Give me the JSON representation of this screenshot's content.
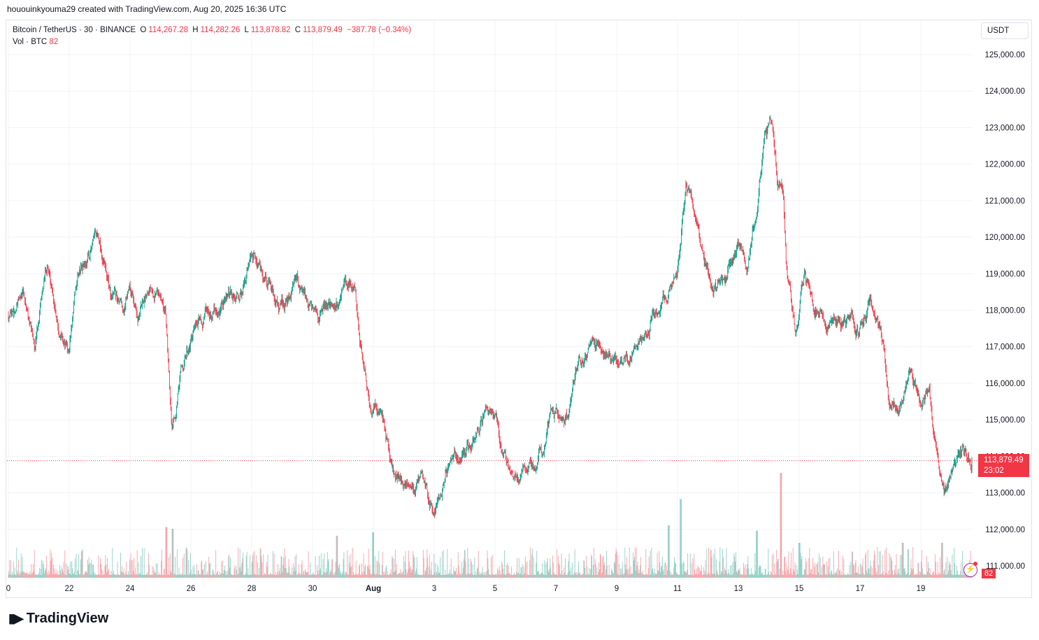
{
  "header": {
    "text": "hououinkyouma29 created with TradingView.com, Aug 20, 2025 16:36 UTC"
  },
  "legend": {
    "symbol": "Bitcoin / TetherUS · 30 · BINANCE",
    "open_label": "O",
    "open": "114,267.28",
    "high_label": "H",
    "high": "114,282.26",
    "low_label": "L",
    "low": "113,878.82",
    "close_label": "C",
    "close": "113,879.49",
    "change": "−387.78 (−0.34%)",
    "vol_label": "Vol · BTC",
    "vol_value": "82"
  },
  "currency_button": "USDT",
  "price_tag": {
    "price": "113,879.49",
    "countdown": "23:02"
  },
  "volume_tag": "82",
  "logo_text": "TradingView",
  "colors": {
    "up": "#089981",
    "down": "#f23645",
    "grid": "#f0f3fa",
    "text": "#131722"
  },
  "chart_data": {
    "type": "candlestick",
    "y_ticks": [
      "125,000.00",
      "124,000.00",
      "123,000.00",
      "122,000.00",
      "121,000.00",
      "120,000.00",
      "119,000.00",
      "118,000.00",
      "117,000.00",
      "116,000.00",
      "115,000.00",
      "114,000.00",
      "113,000.00",
      "112,000.00",
      "111,000.00"
    ],
    "ylim": [
      110600,
      125500
    ],
    "x_ticks": [
      {
        "label": "0",
        "day": 0
      },
      {
        "label": "22",
        "day": 2
      },
      {
        "label": "24",
        "day": 4
      },
      {
        "label": "26",
        "day": 6
      },
      {
        "label": "28",
        "day": 8
      },
      {
        "label": "30",
        "day": 10
      },
      {
        "label": "Aug",
        "day": 12,
        "bold": true
      },
      {
        "label": "3",
        "day": 14
      },
      {
        "label": "5",
        "day": 16
      },
      {
        "label": "7",
        "day": 18
      },
      {
        "label": "9",
        "day": 20
      },
      {
        "label": "11",
        "day": 22
      },
      {
        "label": "13",
        "day": 24
      },
      {
        "label": "15",
        "day": 26
      },
      {
        "label": "17",
        "day": 28
      },
      {
        "label": "19",
        "day": 30
      }
    ],
    "days_span": 31.7,
    "close_path": [
      [
        0.0,
        117900
      ],
      [
        0.5,
        118300
      ],
      [
        0.9,
        117000
      ],
      [
        1.3,
        119300
      ],
      [
        1.7,
        117600
      ],
      [
        2.0,
        116800
      ],
      [
        2.3,
        118900
      ],
      [
        2.8,
        119800
      ],
      [
        3.0,
        120000
      ],
      [
        3.4,
        118300
      ],
      [
        3.8,
        118000
      ],
      [
        4.0,
        118800
      ],
      [
        4.3,
        117800
      ],
      [
        4.7,
        118900
      ],
      [
        5.0,
        118600
      ],
      [
        5.2,
        117800
      ],
      [
        5.4,
        114900
      ],
      [
        5.7,
        116300
      ],
      [
        6.0,
        117200
      ],
      [
        6.4,
        117600
      ],
      [
        6.8,
        118100
      ],
      [
        7.3,
        118200
      ],
      [
        7.7,
        118400
      ],
      [
        8.0,
        119300
      ],
      [
        8.3,
        119200
      ],
      [
        8.8,
        118300
      ],
      [
        9.2,
        118100
      ],
      [
        9.5,
        118900
      ],
      [
        9.9,
        118000
      ],
      [
        10.2,
        117600
      ],
      [
        10.6,
        118000
      ],
      [
        11.0,
        118400
      ],
      [
        11.4,
        118700
      ],
      [
        11.6,
        117200
      ],
      [
        11.9,
        115400
      ],
      [
        12.3,
        115200
      ],
      [
        12.7,
        113500
      ],
      [
        13.1,
        113300
      ],
      [
        13.6,
        113200
      ],
      [
        14.0,
        112400
      ],
      [
        14.4,
        113500
      ],
      [
        14.9,
        114000
      ],
      [
        15.3,
        114200
      ],
      [
        15.7,
        115300
      ],
      [
        16.1,
        114700
      ],
      [
        16.5,
        113500
      ],
      [
        16.8,
        113300
      ],
      [
        17.2,
        113700
      ],
      [
        17.6,
        114200
      ],
      [
        17.9,
        115300
      ],
      [
        18.3,
        114800
      ],
      [
        18.8,
        116600
      ],
      [
        19.2,
        117000
      ],
      [
        19.5,
        116900
      ],
      [
        19.9,
        116800
      ],
      [
        20.2,
        116700
      ],
      [
        20.6,
        117000
      ],
      [
        21.0,
        117400
      ],
      [
        21.3,
        118100
      ],
      [
        21.7,
        118600
      ],
      [
        22.0,
        119000
      ],
      [
        22.3,
        121700
      ],
      [
        22.6,
        120700
      ],
      [
        22.9,
        119300
      ],
      [
        23.2,
        118600
      ],
      [
        23.6,
        118700
      ],
      [
        24.0,
        119800
      ],
      [
        24.3,
        119100
      ],
      [
        24.6,
        120800
      ],
      [
        24.9,
        122800
      ],
      [
        25.1,
        123200
      ],
      [
        25.3,
        121500
      ],
      [
        25.5,
        121300
      ],
      [
        25.6,
        119100
      ],
      [
        25.9,
        117600
      ],
      [
        26.2,
        118900
      ],
      [
        26.5,
        118100
      ],
      [
        26.9,
        117600
      ],
      [
        27.3,
        117600
      ],
      [
        27.7,
        117700
      ],
      [
        28.0,
        117500
      ],
      [
        28.3,
        118200
      ],
      [
        28.7,
        117600
      ],
      [
        29.0,
        115300
      ],
      [
        29.3,
        115400
      ],
      [
        29.7,
        116600
      ],
      [
        30.0,
        115400
      ],
      [
        30.3,
        115800
      ],
      [
        30.5,
        114100
      ],
      [
        30.8,
        113200
      ],
      [
        31.1,
        113500
      ],
      [
        31.4,
        114000
      ],
      [
        31.7,
        113879
      ]
    ],
    "volume_spikes": [
      [
        5.2,
        2900
      ],
      [
        5.4,
        2800
      ],
      [
        10.8,
        2400
      ],
      [
        12.0,
        2600
      ],
      [
        21.7,
        3000
      ],
      [
        22.1,
        4500
      ],
      [
        24.6,
        2700
      ],
      [
        25.4,
        6000
      ],
      [
        26.0,
        2000
      ],
      [
        29.4,
        2000
      ],
      [
        30.7,
        2000
      ]
    ]
  }
}
